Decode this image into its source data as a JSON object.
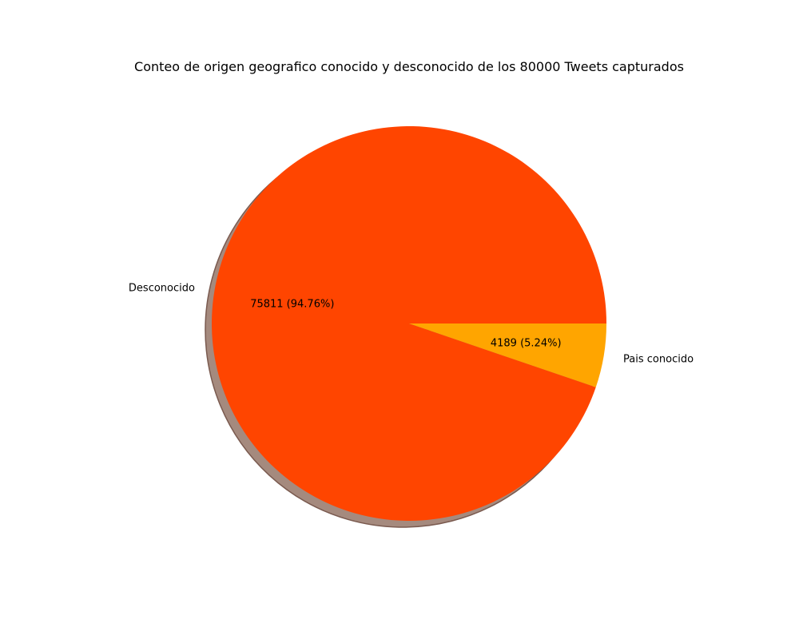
{
  "chart_data": {
    "type": "pie",
    "title": "Conteo de origen geografico conocido y desconocido de los 80000 Tweets capturados",
    "slices": [
      {
        "name": "Desconocido",
        "value": 75811,
        "label": "75811 (94.76%)",
        "color": "#FF4500"
      },
      {
        "name": "Pais conocido",
        "value": 4189,
        "label": "4189 (5.24%)",
        "color": "#FFA500"
      }
    ],
    "shadow": true,
    "shadow_color": "#a58a7e",
    "start_angle_deg": 0,
    "legend": "none"
  }
}
